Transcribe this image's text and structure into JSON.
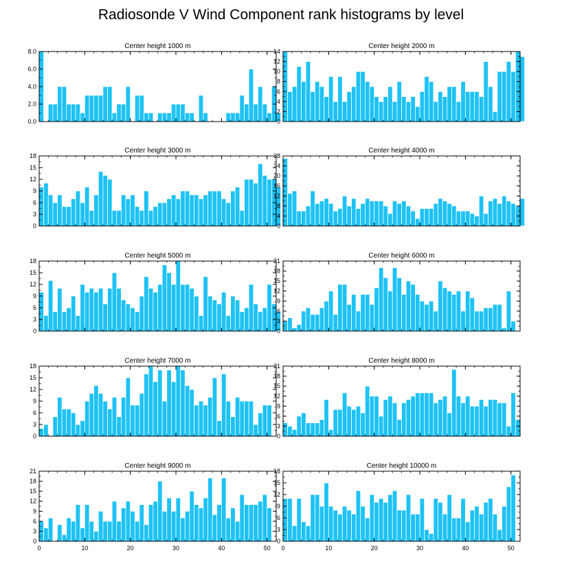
{
  "figure_title": "Radiosonde V Wind Component rank histograms by level",
  "colors": {
    "bar": "#1EC2F5",
    "bar_edge": "#ffffff",
    "axis": "#000000"
  },
  "chart_data": [
    {
      "type": "bar",
      "title": "Center height 1000 m",
      "xlim": [
        0,
        52
      ],
      "ylim": [
        0,
        8
      ],
      "yticks": [
        0,
        2,
        4,
        6,
        8
      ],
      "ytick_labels": [
        "0.0",
        "2.0",
        "4.0",
        "6.0",
        "8.0"
      ],
      "xticks": [
        0,
        10,
        20,
        30,
        40,
        50
      ],
      "xtick_labels": [],
      "values": [
        8,
        0,
        2,
        2,
        4,
        4,
        2,
        2,
        2,
        1,
        3,
        3,
        3,
        3,
        4,
        4,
        1,
        2,
        2,
        4,
        0,
        3,
        3,
        1,
        1,
        0,
        1,
        1,
        1,
        2,
        2,
        2,
        1,
        1,
        0,
        3,
        1,
        0,
        0,
        0,
        0,
        1,
        1,
        1,
        3,
        2,
        6,
        2,
        4,
        2,
        1,
        4,
        1
      ]
    },
    {
      "type": "bar",
      "title": "Center height 2000 m",
      "xlim": [
        0,
        52
      ],
      "ylim": [
        0,
        14
      ],
      "yticks": [
        0,
        2,
        4,
        6,
        8,
        10,
        12,
        14
      ],
      "ytick_labels": [
        "0",
        "2",
        "4",
        "6",
        "8",
        "10",
        "12",
        "14"
      ],
      "xticks": [
        0,
        10,
        20,
        30,
        40,
        50
      ],
      "xtick_labels": [],
      "values": [
        14,
        6,
        7,
        11,
        8,
        12,
        6,
        8,
        7,
        5,
        9,
        4,
        9,
        4,
        6,
        7,
        10,
        10,
        8,
        7,
        5,
        4,
        5,
        7,
        4,
        8,
        5,
        4,
        5,
        3,
        6,
        9,
        8,
        4,
        6,
        5,
        7,
        7,
        4,
        8,
        6,
        6,
        6,
        5,
        12,
        7,
        2,
        10,
        10,
        12,
        10,
        14,
        13
      ]
    },
    {
      "type": "bar",
      "title": "Center height 3000 m",
      "xlim": [
        0,
        52
      ],
      "ylim": [
        0,
        18
      ],
      "yticks": [
        0,
        3,
        6,
        9,
        12,
        15,
        18
      ],
      "ytick_labels": [
        "0",
        "3",
        "6",
        "9",
        "12",
        "15",
        "18"
      ],
      "xticks": [
        0,
        10,
        20,
        30,
        40,
        50
      ],
      "xtick_labels": [],
      "values": [
        10,
        11,
        8,
        6,
        8,
        5,
        5,
        7,
        9,
        6,
        10,
        4,
        8,
        14,
        13,
        12,
        4,
        4,
        8,
        7,
        8,
        5,
        4,
        9,
        4,
        5,
        6,
        6,
        7,
        8,
        7,
        9,
        9,
        8,
        8,
        7,
        8,
        9,
        9,
        9,
        7,
        6,
        9,
        10,
        4,
        12,
        12,
        11,
        16,
        13,
        12,
        12,
        10
      ]
    },
    {
      "type": "bar",
      "title": "Center height 4000 m",
      "xlim": [
        0,
        52
      ],
      "ylim": [
        0,
        28
      ],
      "yticks": [
        0,
        4,
        8,
        12,
        16,
        20,
        24,
        28
      ],
      "ytick_labels": [
        "0",
        "4",
        "8",
        "12",
        "16",
        "20",
        "24",
        "28"
      ],
      "xticks": [
        0,
        10,
        20,
        30,
        40,
        50
      ],
      "xtick_labels": [],
      "values": [
        27,
        13,
        14,
        6,
        6,
        8,
        14,
        9,
        10,
        11,
        9,
        6,
        7,
        12,
        8,
        11,
        7,
        9,
        11,
        10,
        10,
        10,
        8,
        5,
        10,
        9,
        10,
        8,
        6,
        3,
        7,
        7,
        7,
        9,
        11,
        10,
        9,
        8,
        6,
        6,
        6,
        5,
        4,
        12,
        5,
        10,
        11,
        9,
        12,
        10,
        9,
        8,
        11
      ]
    },
    {
      "type": "bar",
      "title": "Center height 5000 m",
      "xlim": [
        0,
        52
      ],
      "ylim": [
        0,
        18
      ],
      "yticks": [
        0,
        3,
        6,
        9,
        12,
        15,
        18
      ],
      "ytick_labels": [
        "0",
        "3",
        "6",
        "9",
        "12",
        "15",
        "18"
      ],
      "xticks": [
        0,
        10,
        20,
        30,
        40,
        50
      ],
      "xtick_labels": [],
      "values": [
        10,
        4,
        13,
        5,
        11,
        5,
        6,
        9,
        4,
        12,
        10,
        11,
        10,
        11,
        7,
        11,
        15,
        11,
        8,
        7,
        6,
        5,
        9,
        14,
        11,
        10,
        12,
        17,
        15,
        12,
        18,
        12,
        12,
        11,
        9,
        4,
        14,
        9,
        8,
        7,
        10,
        4,
        9,
        8,
        5,
        6,
        12,
        7,
        5,
        6,
        12,
        7,
        5
      ]
    },
    {
      "type": "bar",
      "title": "Center height 6000 m",
      "xlim": [
        0,
        52
      ],
      "ylim": [
        0,
        21
      ],
      "yticks": [
        0,
        3,
        6,
        9,
        12,
        15,
        18,
        21
      ],
      "ytick_labels": [
        "0",
        "3",
        "6",
        "9",
        "12",
        "15",
        "18",
        "21"
      ],
      "xticks": [
        0,
        10,
        20,
        30,
        40,
        50
      ],
      "xtick_labels": [],
      "values": [
        3,
        4,
        1,
        2,
        6,
        7,
        5,
        5,
        7,
        9,
        12,
        5,
        14,
        14,
        8,
        11,
        6,
        11,
        11,
        8,
        13,
        19,
        16,
        12,
        19,
        16,
        11,
        15,
        14,
        11,
        9,
        8,
        9,
        6,
        15,
        13,
        12,
        11,
        12,
        6,
        12,
        10,
        6,
        6,
        7,
        7,
        8,
        8,
        1,
        12,
        3,
        0,
        0
      ]
    },
    {
      "type": "bar",
      "title": "Center height 7000 m",
      "xlim": [
        0,
        52
      ],
      "ylim": [
        0,
        18
      ],
      "yticks": [
        0,
        3,
        6,
        9,
        12,
        15,
        18
      ],
      "ytick_labels": [
        "0",
        "3",
        "6",
        "9",
        "12",
        "15",
        "18"
      ],
      "xticks": [
        0,
        10,
        20,
        30,
        40,
        50
      ],
      "xtick_labels": [],
      "values": [
        2,
        3,
        0,
        5,
        10,
        7,
        7,
        6,
        3,
        4,
        9,
        11,
        13,
        11,
        9,
        7,
        10,
        5,
        10,
        15,
        8,
        8,
        11,
        16,
        18,
        14,
        17,
        9,
        17,
        14,
        18,
        17,
        13,
        12,
        8,
        9,
        8,
        10,
        15,
        4,
        16,
        9,
        5,
        10,
        9,
        9,
        9,
        3,
        6,
        8,
        8,
        0,
        0
      ]
    },
    {
      "type": "bar",
      "title": "Center height 8000 m",
      "xlim": [
        0,
        52
      ],
      "ylim": [
        0,
        21
      ],
      "yticks": [
        0,
        3,
        6,
        9,
        12,
        15,
        18,
        21
      ],
      "ytick_labels": [
        "0",
        "3",
        "6",
        "9",
        "12",
        "15",
        "18",
        "21"
      ],
      "xticks": [
        0,
        10,
        20,
        30,
        40,
        50
      ],
      "xtick_labels": [],
      "values": [
        4,
        3,
        2,
        6,
        7,
        4,
        4,
        4,
        5,
        11,
        2,
        8,
        8,
        13,
        9,
        8,
        9,
        7,
        15,
        12,
        12,
        6,
        11,
        12,
        10,
        5,
        10,
        11,
        12,
        13,
        13,
        13,
        13,
        10,
        11,
        12,
        7,
        20,
        12,
        10,
        12,
        9,
        9,
        11,
        9,
        11,
        11,
        10,
        10,
        3,
        13,
        5,
        0
      ]
    },
    {
      "type": "bar",
      "title": "Center height 9000 m",
      "xlim": [
        0,
        52
      ],
      "ylim": [
        0,
        21
      ],
      "yticks": [
        0,
        3,
        6,
        9,
        12,
        15,
        18,
        21
      ],
      "ytick_labels": [
        "0",
        "3",
        "6",
        "9",
        "12",
        "15",
        "18",
        "21"
      ],
      "xticks": [
        0,
        10,
        20,
        30,
        40,
        50
      ],
      "xtick_labels": [
        "0",
        "10",
        "20",
        "30",
        "40",
        "50"
      ],
      "values": [
        6,
        4,
        7,
        0,
        5,
        2,
        7,
        6,
        11,
        4,
        11,
        6,
        3,
        9,
        6,
        6,
        12,
        6,
        10,
        12,
        9,
        6,
        11,
        5,
        11,
        12,
        18,
        9,
        13,
        9,
        13,
        7,
        9,
        15,
        11,
        10,
        13,
        19,
        8,
        11,
        19,
        7,
        10,
        6,
        14,
        11,
        11,
        11,
        12,
        14,
        10,
        0,
        0
      ]
    },
    {
      "type": "bar",
      "title": "Center height 10000 m",
      "xlim": [
        0,
        52
      ],
      "ylim": [
        0,
        18
      ],
      "yticks": [
        0,
        3,
        6,
        9,
        12,
        15,
        18
      ],
      "ytick_labels": [
        "0",
        "3",
        "6",
        "9",
        "12",
        "15",
        "18"
      ],
      "xticks": [
        0,
        10,
        20,
        30,
        40,
        50
      ],
      "xtick_labels": [
        "0",
        "10",
        "20",
        "30",
        "40",
        "50"
      ],
      "values": [
        11,
        11,
        4,
        11,
        5,
        4,
        12,
        12,
        9,
        15,
        9,
        8,
        7,
        9,
        8,
        7,
        13,
        9,
        6,
        12,
        10,
        11,
        10,
        12,
        13,
        8,
        8,
        12,
        7,
        7,
        11,
        3,
        2,
        11,
        10,
        7,
        12,
        6,
        6,
        11,
        5,
        8,
        9,
        7,
        10,
        11,
        7,
        3,
        9,
        14,
        17,
        0,
        0
      ]
    }
  ]
}
